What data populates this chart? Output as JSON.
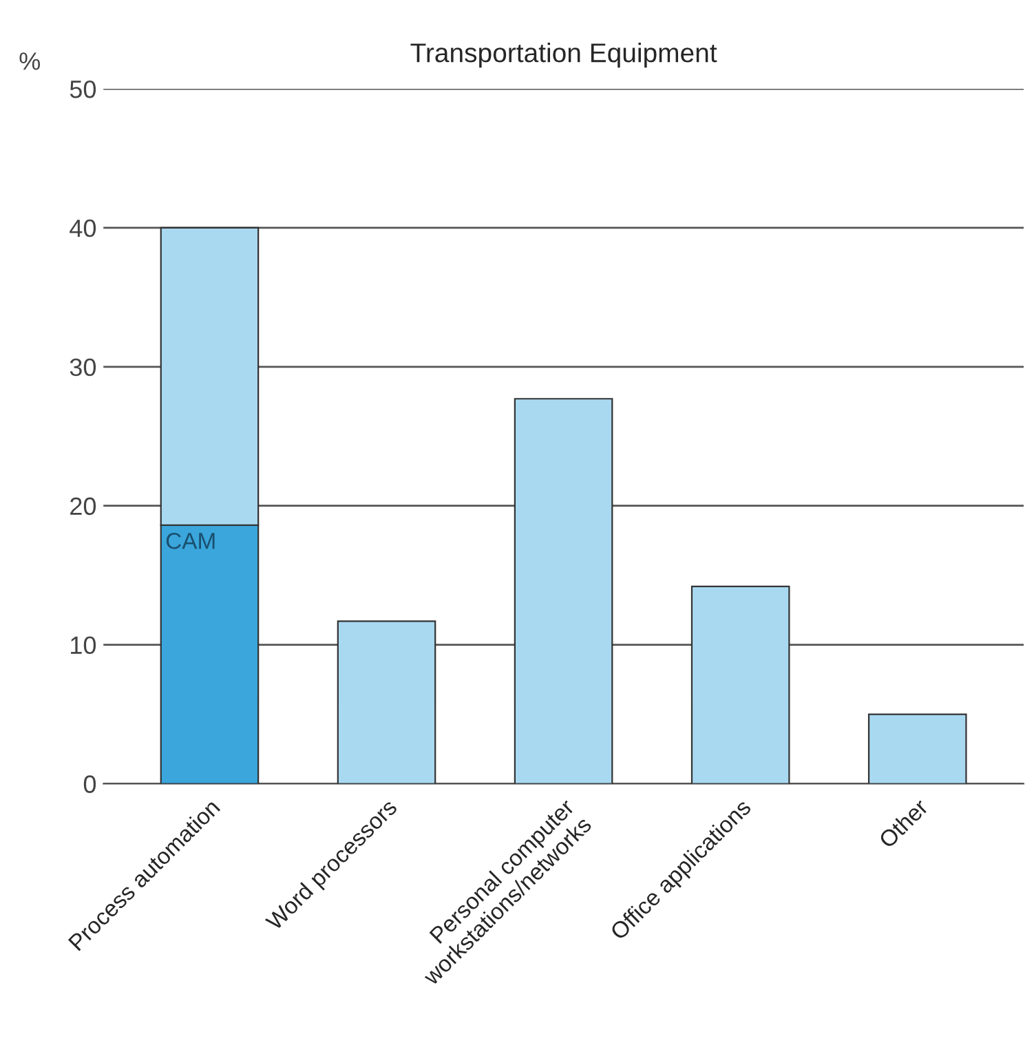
{
  "chart_data": {
    "type": "bar",
    "title": "Transportation Equipment",
    "ylabel": "%",
    "categories": [
      "Process automation",
      "Word processors",
      "Personal computer\nworkstations/networks",
      "Office applications",
      "Other"
    ],
    "stacked": true,
    "series": [
      {
        "name": "CAM",
        "color": "#3aa6dc",
        "values": [
          18.6,
          null,
          null,
          null,
          null
        ]
      },
      {
        "color": "#a9d9f1",
        "values": [
          21.4,
          11.7,
          27.7,
          14.2,
          5
        ]
      }
    ],
    "ylim": [
      0,
      50
    ],
    "yticks": [
      0,
      10,
      20,
      30,
      40,
      50
    ],
    "grid": "y"
  }
}
